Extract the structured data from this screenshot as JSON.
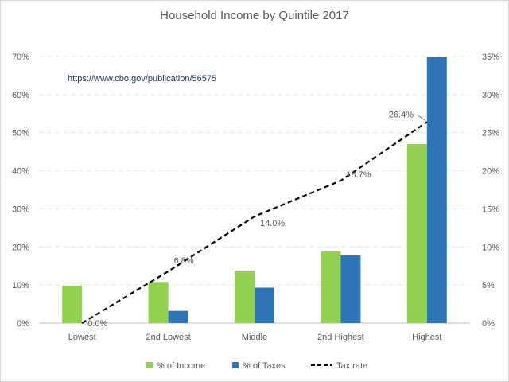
{
  "chart_data": {
    "type": "bar",
    "title": "Household Income by Quintile 2017",
    "annotation": "https://www.cbo.gov/publication/56575",
    "categories": [
      "Lowest",
      "2nd Lowest",
      "Middle",
      "2nd Highest",
      "Highest"
    ],
    "series": [
      {
        "name": "% of Income",
        "type": "bar",
        "axis": "left",
        "color": "#92d050",
        "values": [
          9.8,
          10.8,
          13.6,
          18.8,
          47.0
        ]
      },
      {
        "name": "% of Taxes",
        "type": "bar",
        "axis": "left",
        "color": "#2e75b6",
        "values": [
          0.0,
          3.2,
          9.3,
          17.8,
          69.8
        ]
      },
      {
        "name": "Tax rate",
        "type": "line",
        "axis": "right",
        "color": "#000000",
        "dashed": true,
        "values": [
          0.0,
          6.8,
          14.0,
          18.7,
          26.4
        ],
        "labels": [
          "0.0%",
          "6.8%",
          "14.0%",
          "18.7%",
          "26.4%"
        ]
      }
    ],
    "y_left": {
      "min": 0,
      "max": 70,
      "step": 10,
      "ticks": [
        "0%",
        "10%",
        "20%",
        "30%",
        "40%",
        "50%",
        "60%",
        "70%"
      ]
    },
    "y_right": {
      "min": 0,
      "max": 35,
      "step": 5,
      "ticks": [
        "0%",
        "5%",
        "10%",
        "15%",
        "20%",
        "25%",
        "30%",
        "35%"
      ]
    },
    "grid": true,
    "legend_position": "bottom"
  }
}
